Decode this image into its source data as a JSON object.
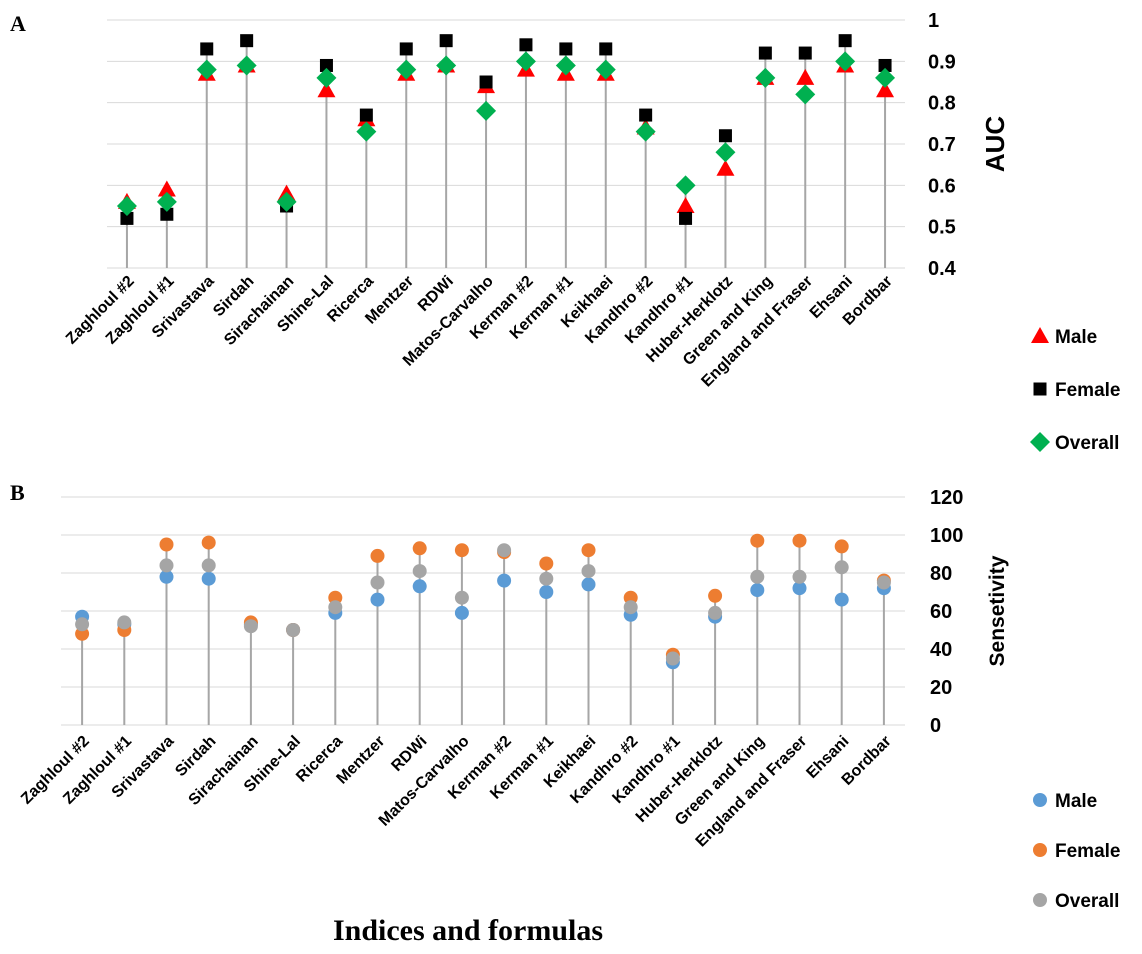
{
  "chart_data": [
    {
      "panel": "A",
      "type": "scatter",
      "ylabel": "AUC",
      "ylim": [
        0.4,
        1
      ],
      "yticks": [
        "1",
        "0.9",
        "0.8",
        "0.7",
        "0.6",
        "0.5",
        "0.4"
      ],
      "grid": true,
      "legend_placement": "right",
      "categories": [
        "Zaghloul #2",
        "Zaghloul #1",
        "Srivastava",
        "Sirdah",
        "Sirachainan",
        "Shine-Lal",
        "Ricerca",
        "Mentzer",
        "RDWi",
        "Matos-Carvalho",
        "Kerman #2",
        "Kerman #1",
        "Keikhaei",
        "Kandhro #2",
        "Kandhro #1",
        "Huber-Herklotz",
        "Green and King",
        "England and Fraser",
        "Ehsani",
        "Bordbar"
      ],
      "series": [
        {
          "name": "Male",
          "marker": "triangle",
          "color": "#ff0000",
          "values": [
            0.56,
            0.59,
            0.87,
            0.89,
            0.58,
            0.83,
            0.76,
            0.87,
            0.89,
            0.84,
            0.88,
            0.87,
            0.87,
            0.74,
            0.55,
            0.64,
            0.86,
            0.86,
            0.89,
            0.83
          ]
        },
        {
          "name": "Female",
          "marker": "square",
          "color": "#000000",
          "values": [
            0.52,
            0.53,
            0.93,
            0.95,
            0.55,
            0.89,
            0.77,
            0.93,
            0.95,
            0.85,
            0.94,
            0.93,
            0.93,
            0.77,
            0.52,
            0.72,
            0.92,
            0.92,
            0.95,
            0.89
          ]
        },
        {
          "name": "Overall",
          "marker": "diamond",
          "color": "#00b050",
          "values": [
            0.55,
            0.56,
            0.88,
            0.89,
            0.56,
            0.86,
            0.73,
            0.88,
            0.89,
            0.78,
            0.9,
            0.89,
            0.88,
            0.73,
            0.6,
            0.68,
            0.86,
            0.82,
            0.9,
            0.86
          ]
        }
      ]
    },
    {
      "panel": "B",
      "type": "scatter",
      "ylabel": "Sensetivity",
      "ylim": [
        0,
        120
      ],
      "yticks": [
        "120",
        "100",
        "80",
        "60",
        "40",
        "20",
        "0"
      ],
      "grid": true,
      "legend_placement": "right",
      "xlabel": "Indices and formulas",
      "categories": [
        "Zaghloul #2",
        "Zaghloul #1",
        "Srivastava",
        "Sirdah",
        "Sirachainan",
        "Shine-Lal",
        "Ricerca",
        "Mentzer",
        "RDWi",
        "Matos-Carvalho",
        "Kerman #2",
        "Kerman #1",
        "Keikhaei",
        "Kandhro #2",
        "Kandhro #1",
        "Huber-Herklotz",
        "Green and King",
        "England and Fraser",
        "Ehsani",
        "Bordbar"
      ],
      "series": [
        {
          "name": "Male",
          "marker": "circle",
          "color": "#5b9bd5",
          "values": [
            57,
            53,
            78,
            77,
            53,
            50,
            59,
            66,
            73,
            59,
            76,
            70,
            74,
            58,
            33,
            57,
            71,
            72,
            66,
            72
          ]
        },
        {
          "name": "Female",
          "marker": "circle",
          "color": "#ed7d31",
          "values": [
            48,
            50,
            95,
            96,
            54,
            50,
            67,
            89,
            93,
            92,
            91,
            85,
            92,
            67,
            37,
            68,
            97,
            97,
            94,
            76
          ]
        },
        {
          "name": "Overall",
          "marker": "circle",
          "color": "#a5a5a5",
          "values": [
            53,
            54,
            84,
            84,
            52,
            50,
            62,
            75,
            81,
            67,
            92,
            77,
            81,
            62,
            35,
            59,
            78,
            78,
            83,
            75
          ]
        }
      ]
    }
  ],
  "labels": {
    "panel_a": "A",
    "panel_b": "B",
    "x_title": "Indices and formulas"
  }
}
